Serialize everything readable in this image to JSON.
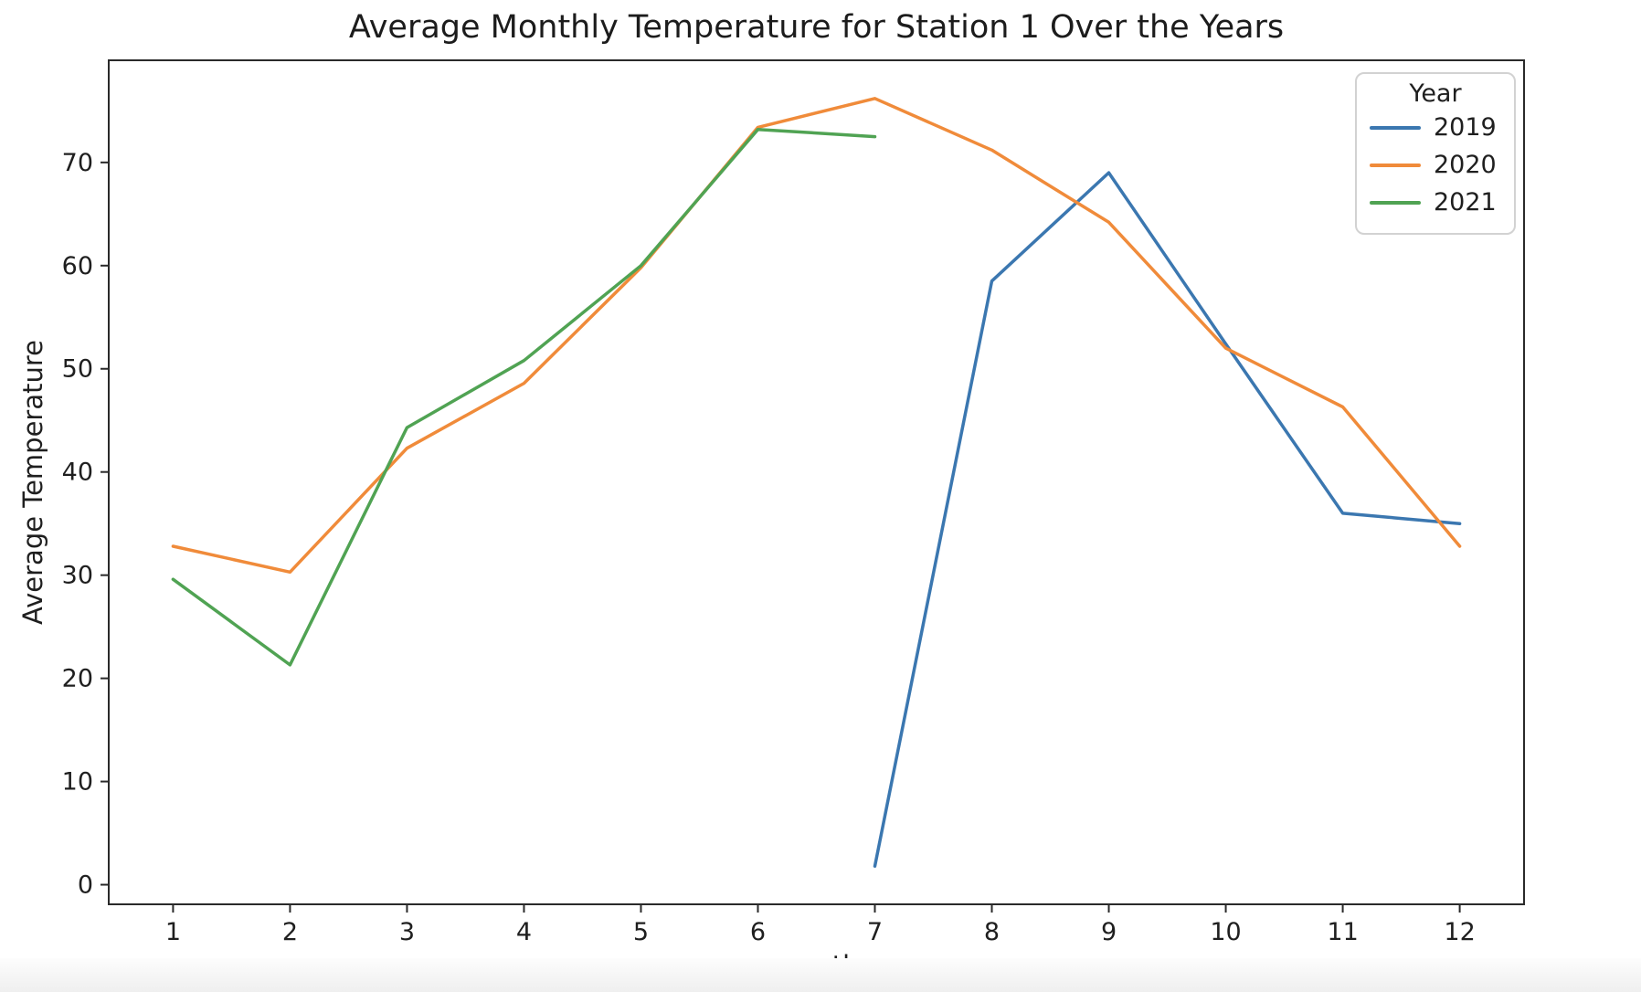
{
  "window": {
    "background": "#ffffff",
    "footer_strip_color": "#f0f0f0"
  },
  "chart_data": {
    "type": "line",
    "title": "Average Monthly Temperature for Station 1 Over the Years",
    "xlabel": "month",
    "ylabel": "Average Temperature",
    "x_ticks": [
      1,
      2,
      3,
      4,
      5,
      6,
      7,
      8,
      9,
      10,
      11,
      12
    ],
    "y_ticks": [
      0,
      10,
      20,
      30,
      40,
      50,
      60,
      70
    ],
    "xlim": [
      0.45,
      12.55
    ],
    "ylim": [
      -1.9,
      79.9
    ],
    "grid": false,
    "legend": {
      "title": "Year",
      "position": "upper right"
    },
    "axis_color": "#2a2a2a",
    "tick_label_color": "#1f1f1f",
    "series": [
      {
        "name": "2019",
        "color": "#3b77b0",
        "x": [
          7,
          8,
          9,
          10,
          11,
          12
        ],
        "y": [
          1.8,
          58.5,
          69.0,
          52.4,
          36.0,
          35.0
        ]
      },
      {
        "name": "2020",
        "color": "#f08b3a",
        "x": [
          1,
          2,
          3,
          4,
          5,
          6,
          7,
          8,
          9,
          10,
          11,
          12
        ],
        "y": [
          32.8,
          30.3,
          42.3,
          48.6,
          59.8,
          73.4,
          76.2,
          71.2,
          64.2,
          52.0,
          46.3,
          32.8
        ]
      },
      {
        "name": "2021",
        "color": "#50a353",
        "x": [
          1,
          2,
          3,
          4,
          5,
          6,
          7
        ],
        "y": [
          29.6,
          21.3,
          44.3,
          50.8,
          60.0,
          73.2,
          72.5
        ]
      }
    ]
  }
}
